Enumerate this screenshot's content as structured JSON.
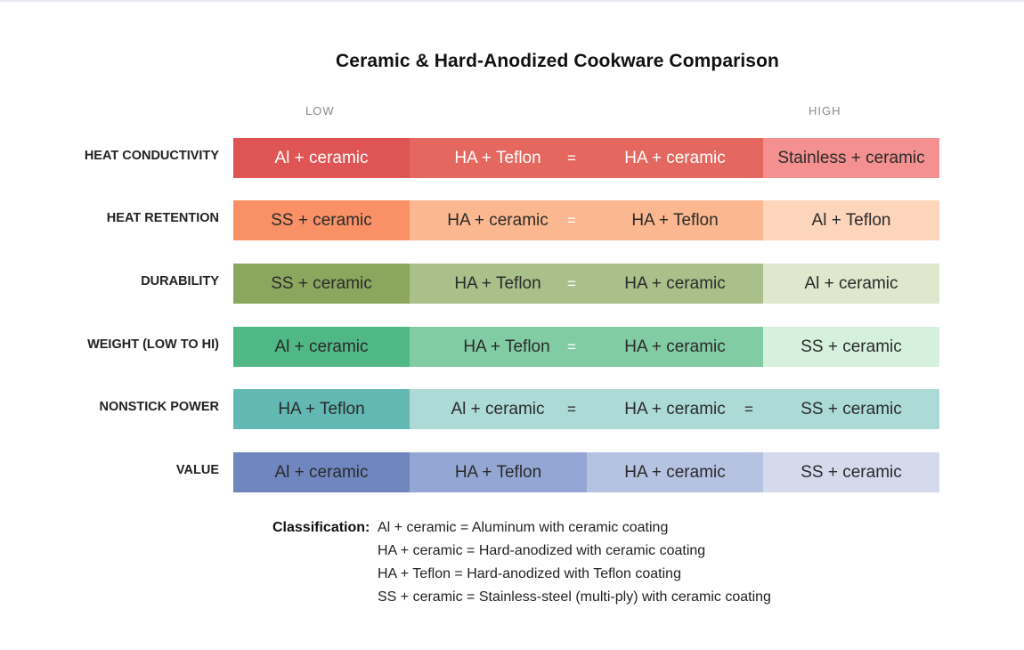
{
  "title": "Ceramic & Hard-Anodized Cookware Comparison",
  "scale": {
    "low": "LOW",
    "high": "HIGH"
  },
  "rows": [
    {
      "label": "HEAT CONDUCTIVITY",
      "cells": [
        "Al + ceramic",
        "HA + Teflon",
        "HA + ceramic",
        "Stainless + ceramic"
      ],
      "colors": [
        "#df5555",
        "#e4685f",
        "#e4685f",
        "#f49190"
      ],
      "text_colors": [
        "#ffffff",
        "#ffffff",
        "#ffffff",
        "#2a2a2a"
      ],
      "equals": [
        "="
      ]
    },
    {
      "label": "HEAT RETENTION",
      "cells": [
        "SS + ceramic",
        "HA + ceramic",
        "HA + Teflon",
        "Al + Teflon"
      ],
      "colors": [
        "#f99066",
        "#fbb890",
        "#fbb890",
        "#fdd5bb"
      ],
      "text_colors": [
        "#2a2a2a",
        "#2a2a2a",
        "#2a2a2a",
        "#2a2a2a"
      ],
      "equals": [
        "="
      ]
    },
    {
      "label": "DURABILITY",
      "cells": [
        "SS + ceramic",
        "HA + Teflon",
        "HA + ceramic",
        "Al + ceramic"
      ],
      "colors": [
        "#8ba75e",
        "#a9c08a",
        "#a9c08a",
        "#dfe7cd"
      ],
      "text_colors": [
        "#2a2a2a",
        "#2a2a2a",
        "#2a2a2a",
        "#2a2a2a"
      ],
      "equals": [
        "="
      ]
    },
    {
      "label": "WEIGHT (LOW TO HI)",
      "cells": [
        "Al + ceramic",
        "HA + Teflon",
        "HA + ceramic",
        "SS + ceramic"
      ],
      "colors": [
        "#50b885",
        "#82cca4",
        "#82cca4",
        "#d5f1dd"
      ],
      "text_colors": [
        "#2a2a2a",
        "#2a2a2a",
        "#2a2a2a",
        "#2a2a2a"
      ],
      "equals": [
        "="
      ]
    },
    {
      "label": "NONSTICK POWER",
      "cells": [
        "HA + Teflon",
        "Al + ceramic",
        "HA + ceramic",
        "SS + ceramic"
      ],
      "colors": [
        "#64b8b3",
        "#acdad7",
        "#acdad7",
        "#acdad7"
      ],
      "text_colors": [
        "#2a2a2a",
        "#2a2a2a",
        "#2a2a2a",
        "#2a2a2a"
      ],
      "equals": [
        "=",
        "="
      ]
    },
    {
      "label": "VALUE",
      "cells": [
        "Al + ceramic",
        "HA + Teflon",
        "HA + ceramic",
        "SS + ceramic"
      ],
      "colors": [
        "#6f86bf",
        "#94a7d4",
        "#b5c2e2",
        "#d4d9ec"
      ],
      "text_colors": [
        "#2a2a2a",
        "#2a2a2a",
        "#2a2a2a",
        "#2a2a2a"
      ],
      "equals": []
    }
  ],
  "legend": {
    "title": "Classification:",
    "lines": [
      "Al + ceramic = Aluminum with ceramic coating",
      "HA + ceramic = Hard-anodized with ceramic coating",
      "HA + Teflon = Hard-anodized with Teflon coating",
      "SS + ceramic = Stainless-steel (multi-ply) with ceramic coating"
    ]
  }
}
